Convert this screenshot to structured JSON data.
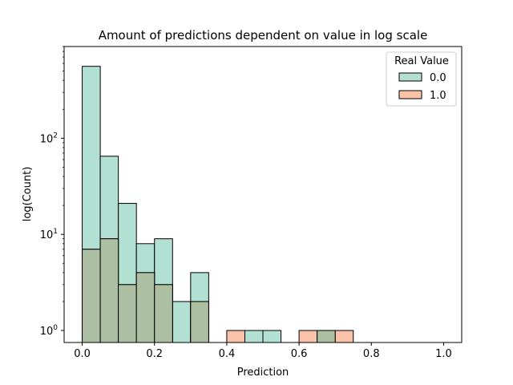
{
  "chart_data": {
    "type": "bar",
    "title": "Amount of predictions dependent on value in log scale",
    "xlabel": "Prediction",
    "ylabel": "log(Count)",
    "xlim": [
      -0.05,
      1.05
    ],
    "ylim": [
      0.75,
      900
    ],
    "yscale": "log",
    "bin_width": 0.05,
    "x_ticks": [
      0.0,
      0.2,
      0.4,
      0.6,
      0.8,
      1.0
    ],
    "x_tick_labels": [
      "0.0",
      "0.2",
      "0.4",
      "0.6",
      "0.8",
      "1.0"
    ],
    "y_ticks": [
      1,
      10,
      100
    ],
    "y_tick_labels": [
      {
        "base": "10",
        "exp": "0"
      },
      {
        "base": "10",
        "exp": "1"
      },
      {
        "base": "10",
        "exp": "2"
      }
    ],
    "legend": {
      "title": "Real Value",
      "placement": "top-right"
    },
    "series": [
      {
        "name": "0.0",
        "color": "#b2e0d3",
        "bins": [
          {
            "x": 0.0,
            "count": 560
          },
          {
            "x": 0.05,
            "count": 65
          },
          {
            "x": 0.1,
            "count": 21
          },
          {
            "x": 0.15,
            "count": 8
          },
          {
            "x": 0.2,
            "count": 9
          },
          {
            "x": 0.25,
            "count": 2
          },
          {
            "x": 0.3,
            "count": 4
          },
          {
            "x": 0.45,
            "count": 1
          },
          {
            "x": 0.5,
            "count": 1
          },
          {
            "x": 0.65,
            "count": 1
          }
        ]
      },
      {
        "name": "1.0",
        "color": "#fac3a9",
        "bins": [
          {
            "x": 0.0,
            "count": 7
          },
          {
            "x": 0.05,
            "count": 9
          },
          {
            "x": 0.1,
            "count": 3
          },
          {
            "x": 0.15,
            "count": 4
          },
          {
            "x": 0.2,
            "count": 3
          },
          {
            "x": 0.3,
            "count": 2
          },
          {
            "x": 0.4,
            "count": 1
          },
          {
            "x": 0.6,
            "count": 1
          },
          {
            "x": 0.65,
            "count": 1
          },
          {
            "x": 0.7,
            "count": 1
          }
        ]
      }
    ],
    "overlap_color": "#adbfa3"
  }
}
